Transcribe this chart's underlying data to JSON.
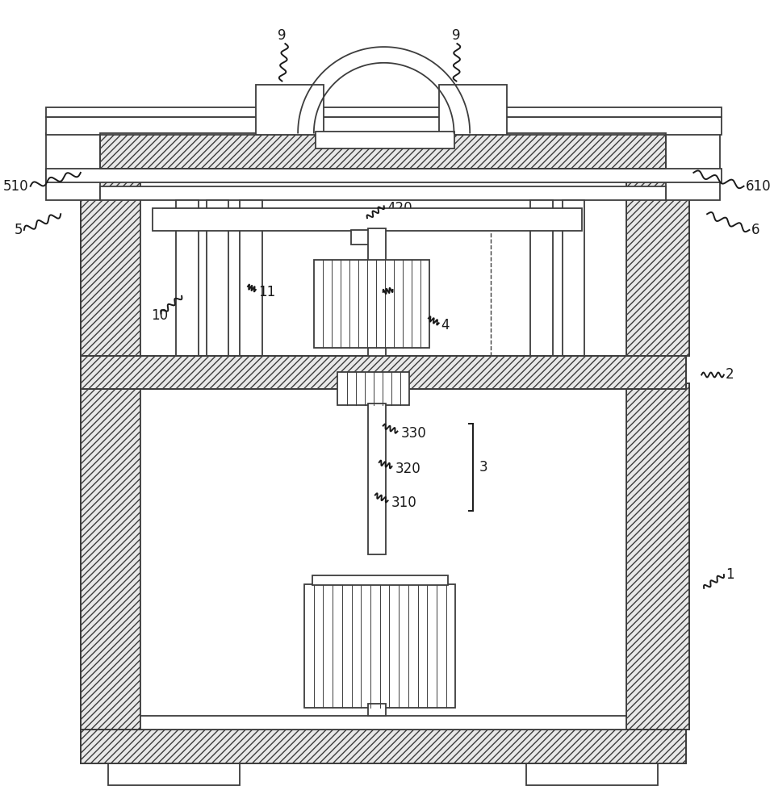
{
  "bg_color": "#ffffff",
  "line_color": "#3d3d3d",
  "fig_width": 9.59,
  "fig_height": 10.0
}
